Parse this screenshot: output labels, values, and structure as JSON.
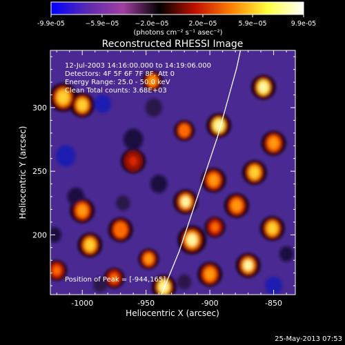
{
  "chart_data": {
    "type": "heatmap",
    "title": "Reconstructed RHESSI Image",
    "xlabel": "Heliocentric X (arcsec)",
    "ylabel": "Heliocentric Y (arcsec)",
    "xlim": [
      -1025,
      -833
    ],
    "ylim": [
      153,
      345
    ],
    "x_ticks": [
      -1000,
      -950,
      -900,
      -850
    ],
    "x_tick_labels": [
      "-1000",
      "-950",
      "-900",
      "-850"
    ],
    "y_ticks": [
      200,
      250,
      300
    ],
    "y_tick_labels": [
      "200",
      "250",
      "300"
    ],
    "colorbar": {
      "range": [
        -9.9e-05,
        9.9e-05
      ],
      "ticks": [
        -9.9e-05,
        -5.9e-05,
        -2e-05,
        2e-05,
        5.9e-05,
        9.9e-05
      ],
      "tick_labels": [
        "-9.9e-05",
        "−5.9e−05",
        "−2.0e−05",
        "2.0e−05",
        "5.9e−05",
        "9.9e-05"
      ],
      "units_label": "(photons cm⁻² s⁻¹ asec⁻²)",
      "colors": [
        "#0000ff",
        "#5a2ab0",
        "#a040a0",
        "#000000",
        "#c01000",
        "#ff8000",
        "#ffff40",
        "#ffffff"
      ]
    },
    "annotations": [
      "12-Jul-2003 14:16:00.000 to 14:19:06.000",
      "Detectors: 4F 5F 6F 7F 8F, Att 0",
      "Energy Range: 25.0 - 50.0 keV",
      "Clean    Total counts: 3.68E+03"
    ],
    "peak_label": "Position of Peak = [-944,165]",
    "peak_position": [
      -944,
      165
    ],
    "limb_curve": {
      "x": [
        -938,
        -931,
        -924,
        -918,
        -912,
        -906,
        -900,
        -894,
        -889,
        -884,
        -879,
        -876
      ],
      "y": [
        153,
        170,
        187,
        205,
        223,
        241,
        259,
        277,
        295,
        313,
        331,
        345
      ]
    },
    "blobs": [
      {
        "x": -893,
        "y": 286,
        "v": 0.95,
        "s": 6
      },
      {
        "x": -858,
        "y": 316,
        "v": 0.92,
        "s": 6
      },
      {
        "x": -850,
        "y": 272,
        "v": 0.72,
        "s": 6
      },
      {
        "x": -865,
        "y": 249,
        "v": 0.82,
        "s": 6
      },
      {
        "x": -897,
        "y": 243,
        "v": 0.75,
        "s": 6
      },
      {
        "x": -919,
        "y": 226,
        "v": 0.88,
        "s": 6
      },
      {
        "x": -914,
        "y": 196,
        "v": 0.9,
        "s": 7
      },
      {
        "x": -879,
        "y": 223,
        "v": 0.72,
        "s": 6
      },
      {
        "x": -896,
        "y": 206,
        "v": 0.62,
        "s": 5
      },
      {
        "x": -900,
        "y": 169,
        "v": 0.7,
        "s": 6
      },
      {
        "x": -870,
        "y": 176,
        "v": 0.88,
        "s": 6
      },
      {
        "x": -851,
        "y": 205,
        "v": 0.85,
        "s": 6
      },
      {
        "x": -936,
        "y": 159,
        "v": 0.95,
        "s": 6
      },
      {
        "x": -1015,
        "y": 308,
        "v": 0.85,
        "s": 7
      },
      {
        "x": -1000,
        "y": 302,
        "v": 0.82,
        "s": 6
      },
      {
        "x": -945,
        "y": 321,
        "v": 0.72,
        "s": 5
      },
      {
        "x": -920,
        "y": 282,
        "v": 0.65,
        "s": 5
      },
      {
        "x": -1000,
        "y": 219,
        "v": 0.72,
        "s": 6
      },
      {
        "x": -994,
        "y": 192,
        "v": 0.8,
        "s": 6
      },
      {
        "x": -970,
        "y": 204,
        "v": 0.65,
        "s": 6
      },
      {
        "x": -948,
        "y": 181,
        "v": 0.7,
        "s": 5
      },
      {
        "x": -1020,
        "y": 172,
        "v": 0.62,
        "s": 5
      },
      {
        "x": -975,
        "y": 166,
        "v": 0.6,
        "s": 5
      },
      {
        "x": -960,
        "y": 258,
        "v": 0.45,
        "s": 6
      },
      {
        "x": -984,
        "y": 303,
        "v": -0.6,
        "s": 6
      },
      {
        "x": -960,
        "y": 275,
        "v": -0.45,
        "s": 7
      },
      {
        "x": -1013,
        "y": 262,
        "v": -0.55,
        "s": 7
      },
      {
        "x": -1005,
        "y": 230,
        "v": -0.4,
        "s": 6
      },
      {
        "x": -944,
        "y": 300,
        "v": -0.35,
        "s": 6
      },
      {
        "x": -940,
        "y": 240,
        "v": -0.4,
        "s": 6
      },
      {
        "x": -968,
        "y": 225,
        "v": -0.3,
        "s": 5
      },
      {
        "x": -1022,
        "y": 200,
        "v": -0.45,
        "s": 5
      },
      {
        "x": -850,
        "y": 160,
        "v": -0.5,
        "s": 6
      },
      {
        "x": -840,
        "y": 185,
        "v": -0.4,
        "s": 5
      },
      {
        "x": -986,
        "y": 161,
        "v": -0.35,
        "s": 5
      },
      {
        "x": -920,
        "y": 163,
        "v": -0.3,
        "s": 5
      }
    ]
  },
  "footer": {
    "timestamp": "25-May-2013 07:53"
  }
}
